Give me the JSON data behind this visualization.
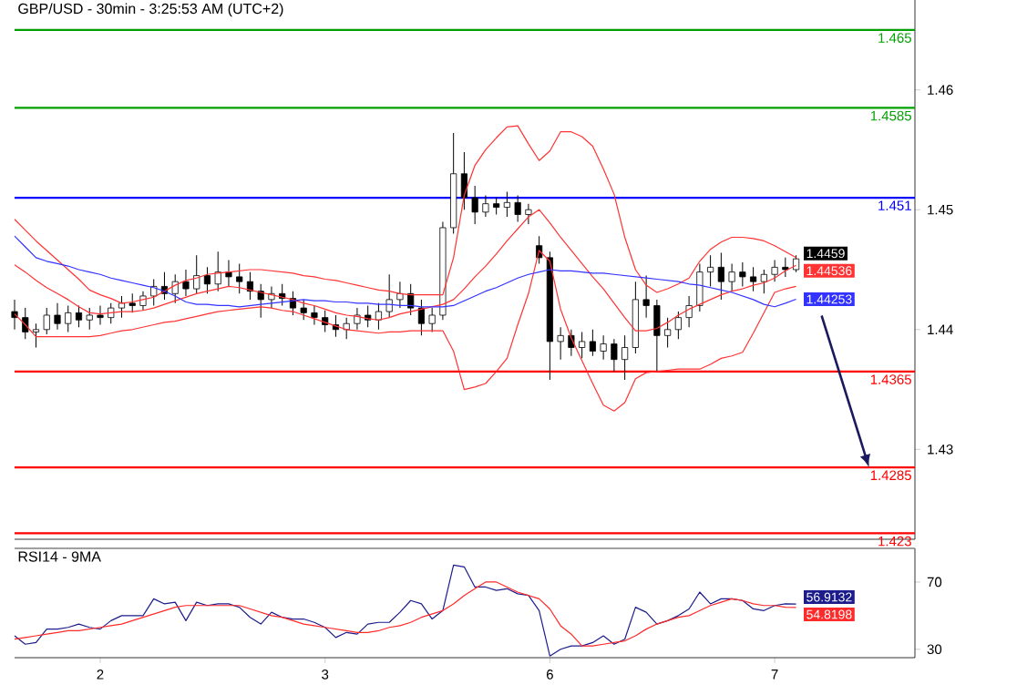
{
  "chart_data": [
    {
      "type": "candlestick",
      "title": "GBP/USD - 30min - 3:25:53 AM (UTC+2)",
      "ylim": [
        1.4225,
        1.4675
      ],
      "yticks": [
        1.43,
        1.44,
        1.45,
        1.46
      ],
      "tick_labels": "y",
      "categories": [
        null,
        null,
        null,
        null,
        null,
        null,
        null,
        null,
        null,
        null,
        null,
        null,
        null,
        null,
        null,
        null,
        null,
        null,
        null,
        null,
        null,
        null,
        null,
        null,
        null,
        null,
        null,
        null,
        null,
        null,
        null,
        null,
        null,
        null,
        null,
        null,
        null,
        null,
        null,
        null,
        null,
        null,
        null,
        null,
        null,
        null,
        null,
        null,
        null,
        null,
        null,
        null,
        null,
        null,
        null,
        null,
        null,
        null,
        null,
        null,
        null,
        null,
        null,
        null,
        null,
        null,
        null,
        null,
        null,
        null,
        null,
        null,
        null,
        null
      ],
      "ref_lines": [
        {
          "axis": "y",
          "value": 1.465,
          "label": "1.465",
          "color": "#00a000"
        },
        {
          "axis": "y",
          "value": 1.4585,
          "label": "1.4585",
          "color": "#00a000"
        },
        {
          "axis": "y",
          "value": 1.451,
          "label": "1.451",
          "color": "#0000ff"
        },
        {
          "axis": "y",
          "value": 1.4365,
          "label": "1.4365",
          "color": "#ff0000"
        },
        {
          "axis": "y",
          "value": 1.4285,
          "label": "1.4285",
          "color": "#ff0000"
        },
        {
          "axis": "y",
          "value": 1.423,
          "label": "1.423",
          "color": "#ff0000"
        }
      ],
      "series": [
        {
          "type": "candlestick",
          "color": "#000000",
          "ohlc": [
            [
              1.4415,
              1.4425,
              1.44,
              1.441
            ],
            [
              1.441,
              1.4418,
              1.4392,
              1.4398
            ],
            [
              1.4398,
              1.4405,
              1.4385,
              1.44
            ],
            [
              1.44,
              1.4418,
              1.4396,
              1.4412
            ],
            [
              1.4412,
              1.4422,
              1.44,
              1.4405
            ],
            [
              1.4405,
              1.442,
              1.4398,
              1.4414
            ],
            [
              1.4414,
              1.442,
              1.4402,
              1.4408
            ],
            [
              1.4408,
              1.4418,
              1.44,
              1.4412
            ],
            [
              1.4412,
              1.442,
              1.4404,
              1.441
            ],
            [
              1.441,
              1.4422,
              1.4405,
              1.4418
            ],
            [
              1.4418,
              1.4428,
              1.441,
              1.4422
            ],
            [
              1.4422,
              1.443,
              1.4414,
              1.442
            ],
            [
              1.442,
              1.4432,
              1.4416,
              1.4428
            ],
            [
              1.4428,
              1.4442,
              1.442,
              1.4436
            ],
            [
              1.4436,
              1.4448,
              1.4425,
              1.443
            ],
            [
              1.443,
              1.4446,
              1.4422,
              1.444
            ],
            [
              1.444,
              1.445,
              1.4428,
              1.4434
            ],
            [
              1.4434,
              1.4462,
              1.443,
              1.4445
            ],
            [
              1.4445,
              1.4452,
              1.443,
              1.4438
            ],
            [
              1.4438,
              1.4465,
              1.4432,
              1.4448
            ],
            [
              1.4448,
              1.4458,
              1.4436,
              1.4444
            ],
            [
              1.4444,
              1.4455,
              1.443,
              1.444
            ],
            [
              1.444,
              1.4448,
              1.4425,
              1.4432
            ],
            [
              1.4432,
              1.4438,
              1.441,
              1.4425
            ],
            [
              1.4425,
              1.4436,
              1.4418,
              1.443
            ],
            [
              1.443,
              1.4438,
              1.442,
              1.4426
            ],
            [
              1.4426,
              1.4432,
              1.4412,
              1.4418
            ],
            [
              1.4418,
              1.4425,
              1.4408,
              1.4414
            ],
            [
              1.4414,
              1.442,
              1.4404,
              1.441
            ],
            [
              1.441,
              1.4416,
              1.4398,
              1.4404
            ],
            [
              1.4404,
              1.4412,
              1.4394,
              1.44
            ],
            [
              1.44,
              1.441,
              1.4392,
              1.4405
            ],
            [
              1.4405,
              1.4418,
              1.44,
              1.4412
            ],
            [
              1.4412,
              1.442,
              1.4402,
              1.4408
            ],
            [
              1.4408,
              1.4422,
              1.44,
              1.4415
            ],
            [
              1.4415,
              1.4446,
              1.441,
              1.4425
            ],
            [
              1.4425,
              1.444,
              1.4418,
              1.443
            ],
            [
              1.443,
              1.4438,
              1.4412,
              1.4418
            ],
            [
              1.4418,
              1.4425,
              1.4395,
              1.4405
            ],
            [
              1.4405,
              1.4418,
              1.4398,
              1.4412
            ],
            [
              1.4412,
              1.449,
              1.4408,
              1.4485
            ],
            [
              1.4485,
              1.4564,
              1.448,
              1.453
            ],
            [
              1.453,
              1.4548,
              1.45,
              1.451
            ],
            [
              1.451,
              1.452,
              1.4488,
              1.4498
            ],
            [
              1.4498,
              1.4512,
              1.4494,
              1.4505
            ],
            [
              1.4505,
              1.451,
              1.4496,
              1.4502
            ],
            [
              1.4502,
              1.4515,
              1.4494,
              1.4506
            ],
            [
              1.4506,
              1.4512,
              1.449,
              1.4496
            ],
            [
              1.4496,
              1.4505,
              1.4488,
              1.45
            ],
            [
              1.447,
              1.4478,
              1.4455,
              1.446
            ],
            [
              1.446,
              1.4465,
              1.4358,
              1.439
            ],
            [
              1.439,
              1.4402,
              1.4375,
              1.4395
            ],
            [
              1.4395,
              1.44,
              1.4378,
              1.4385
            ],
            [
              1.4385,
              1.4398,
              1.4376,
              1.439
            ],
            [
              1.439,
              1.44,
              1.4378,
              1.4382
            ],
            [
              1.4382,
              1.4395,
              1.4375,
              1.4388
            ],
            [
              1.4388,
              1.4392,
              1.4365,
              1.4375
            ],
            [
              1.4375,
              1.4395,
              1.4358,
              1.4385
            ],
            [
              1.4385,
              1.444,
              1.438,
              1.4425
            ],
            [
              1.4425,
              1.4445,
              1.441,
              1.442
            ],
            [
              1.442,
              1.4425,
              1.4365,
              1.4395
            ],
            [
              1.4395,
              1.441,
              1.4385,
              1.44
            ],
            [
              1.44,
              1.4415,
              1.4392,
              1.441
            ],
            [
              1.441,
              1.4428,
              1.4402,
              1.442
            ],
            [
              1.442,
              1.4455,
              1.4415,
              1.4448
            ],
            [
              1.4448,
              1.4462,
              1.4436,
              1.4452
            ],
            [
              1.4452,
              1.4464,
              1.4425,
              1.444
            ],
            [
              1.444,
              1.4455,
              1.4432,
              1.4448
            ],
            [
              1.4448,
              1.4456,
              1.4436,
              1.4444
            ],
            [
              1.4444,
              1.4452,
              1.4432,
              1.444
            ],
            [
              1.444,
              1.445,
              1.443,
              1.4446
            ],
            [
              1.4446,
              1.4458,
              1.444,
              1.4452
            ],
            [
              1.4452,
              1.446,
              1.4444,
              1.445
            ],
            [
              1.445,
              1.4462,
              1.4448,
              1.4459
            ]
          ],
          "value_labels": [
            null,
            null,
            null,
            null,
            null,
            null,
            null,
            null,
            null,
            null,
            null,
            null,
            null,
            null,
            null,
            null,
            null,
            null,
            null,
            null,
            null,
            null,
            null,
            null,
            null,
            null,
            null,
            null,
            null,
            null,
            null,
            null,
            null,
            null,
            null,
            null,
            null,
            null,
            null,
            null,
            null,
            null,
            null,
            null,
            null,
            null,
            null,
            null,
            null,
            null,
            null,
            null,
            null,
            null,
            null,
            null,
            null,
            null,
            null,
            null,
            null,
            null,
            null,
            null,
            null,
            null,
            null,
            null,
            null,
            null,
            null,
            null,
            null,
            "1.4459"
          ]
        },
        {
          "type": "line",
          "color": "#ff3333",
          "values": [
            1.4492,
            1.4483,
            1.4474,
            1.4466,
            1.4458,
            1.445,
            1.4442,
            1.4433,
            1.4429,
            1.4426,
            1.4422,
            1.4423,
            1.4425,
            1.4427,
            1.4432,
            1.4437,
            1.4441,
            1.4443,
            1.4446,
            1.4447,
            1.4448,
            1.4449,
            1.445,
            1.445,
            1.4449,
            1.4448,
            1.4447,
            1.4445,
            1.4444,
            1.4442,
            1.4441,
            1.4439,
            1.4437,
            1.4435,
            1.4433,
            1.4432,
            1.443,
            1.4429,
            1.4429,
            1.4429,
            1.4429,
            1.446,
            1.4512,
            1.4537,
            1.455,
            1.456,
            1.4569,
            1.457,
            1.4555,
            1.4541,
            1.4549,
            1.4565,
            1.4565,
            1.4561,
            1.4553,
            1.4534,
            1.4513,
            1.4477,
            1.445,
            1.4437,
            1.4431,
            1.4434,
            1.4438,
            1.4443,
            1.4457,
            1.4467,
            1.4473,
            1.4477,
            1.4477,
            1.4476,
            1.4474,
            1.447,
            1.4465,
            1.446
          ]
        },
        {
          "type": "line",
          "color": "#ff3333",
          "values": [
            1.4454,
            1.4448,
            1.4441,
            1.4435,
            1.443,
            1.4425,
            1.4419,
            1.4414,
            1.4413,
            1.4414,
            1.4415,
            1.4415,
            1.4416,
            1.4418,
            1.4421,
            1.4424,
            1.4427,
            1.443,
            1.4432,
            1.4434,
            1.4436,
            1.4435,
            1.4433,
            1.4431,
            1.4429,
            1.4427,
            1.4425,
            1.4422,
            1.442,
            1.4417,
            1.4414,
            1.4412,
            1.4411,
            1.4409,
            1.4408,
            1.441,
            1.4413,
            1.4415,
            1.4417,
            1.4419,
            1.4421,
            1.4425,
            1.4434,
            1.4444,
            1.4453,
            1.4463,
            1.4474,
            1.4484,
            1.4494,
            1.45,
            1.4489,
            1.4477,
            1.4466,
            1.4455,
            1.4444,
            1.4434,
            1.4422,
            1.441,
            1.4399,
            1.4399,
            1.4401,
            1.4406,
            1.4412,
            1.4417,
            1.4421,
            1.4425,
            1.4429,
            1.4432,
            1.4434,
            1.4437,
            1.4439,
            1.4443,
            1.4449,
            1.44536
          ],
          "value_labels": [
            null,
            null,
            null,
            null,
            null,
            null,
            null,
            null,
            null,
            null,
            null,
            null,
            null,
            null,
            null,
            null,
            null,
            null,
            null,
            null,
            null,
            null,
            null,
            null,
            null,
            null,
            null,
            null,
            null,
            null,
            null,
            null,
            null,
            null,
            null,
            null,
            null,
            null,
            null,
            null,
            null,
            null,
            null,
            null,
            null,
            null,
            null,
            null,
            null,
            null,
            null,
            null,
            null,
            null,
            null,
            null,
            null,
            null,
            null,
            null,
            null,
            null,
            null,
            null,
            null,
            null,
            null,
            null,
            null,
            null,
            null,
            null,
            null,
            "1.44536"
          ]
        },
        {
          "type": "line",
          "color": "#ff3333",
          "values": [
            1.4413,
            1.4404,
            1.4394,
            1.4394,
            1.4394,
            1.4394,
            1.4394,
            1.4394,
            1.4395,
            1.4397,
            1.4399,
            1.44,
            1.4402,
            1.4404,
            1.4406,
            1.4407,
            1.4409,
            1.4411,
            1.4413,
            1.4415,
            1.4416,
            1.4417,
            1.4418,
            1.4419,
            1.4418,
            1.4416,
            1.4415,
            1.4412,
            1.4409,
            1.4406,
            1.4403,
            1.44,
            1.4399,
            1.4398,
            1.4397,
            1.4398,
            1.4398,
            1.4399,
            1.4399,
            1.4399,
            1.4399,
            1.4382,
            1.435,
            1.4352,
            1.4355,
            1.4365,
            1.4376,
            1.4404,
            1.443,
            1.4466,
            1.4457,
            1.4417,
            1.4393,
            1.4374,
            1.4355,
            1.4337,
            1.4332,
            1.4339,
            1.4359,
            1.4364,
            1.4365,
            1.4366,
            1.4367,
            1.4367,
            1.4367,
            1.4371,
            1.4376,
            1.4378,
            1.4381,
            1.4397,
            1.4414,
            1.4431,
            1.4434,
            1.4436
          ]
        },
        {
          "type": "line",
          "color": "#3333ff",
          "values": [
            1.4478,
            1.4469,
            1.446,
            1.4457,
            1.4455,
            1.4453,
            1.445,
            1.4448,
            1.4446,
            1.4443,
            1.4441,
            1.4439,
            1.4437,
            1.4435,
            1.4432,
            1.4428,
            1.4423,
            1.4421,
            1.4421,
            1.442,
            1.442,
            1.4419,
            1.442,
            1.4421,
            1.4422,
            1.4423,
            1.4424,
            1.4425,
            1.4424,
            1.4424,
            1.4423,
            1.4423,
            1.4422,
            1.4422,
            1.4421,
            1.4421,
            1.442,
            1.442,
            1.4419,
            1.4419,
            1.4419,
            1.442,
            1.4424,
            1.4428,
            1.4432,
            1.4435,
            1.4439,
            1.4443,
            1.4446,
            1.4448,
            1.445,
            1.4449,
            1.4449,
            1.4448,
            1.4447,
            1.4447,
            1.4446,
            1.4445,
            1.4444,
            1.4443,
            1.4442,
            1.4441,
            1.444,
            1.4438,
            1.4437,
            1.4435,
            1.4433,
            1.4431,
            1.4428,
            1.4425,
            1.4421,
            1.4419,
            1.4422,
            1.44253
          ],
          "value_labels": [
            null,
            null,
            null,
            null,
            null,
            null,
            null,
            null,
            null,
            null,
            null,
            null,
            null,
            null,
            null,
            null,
            null,
            null,
            null,
            null,
            null,
            null,
            null,
            null,
            null,
            null,
            null,
            null,
            null,
            null,
            null,
            null,
            null,
            null,
            null,
            null,
            null,
            null,
            null,
            null,
            null,
            null,
            null,
            null,
            null,
            null,
            null,
            null,
            null,
            null,
            null,
            null,
            null,
            null,
            null,
            null,
            null,
            null,
            null,
            null,
            null,
            null,
            null,
            null,
            null,
            null,
            null,
            null,
            null,
            null,
            null,
            null,
            null,
            "1.44253"
          ]
        }
      ]
    },
    {
      "type": "line",
      "title": "RSI14 - 9MA",
      "ylim": [
        25,
        90
      ],
      "yticks": [
        30,
        70
      ],
      "categories": [
        null,
        null,
        null,
        null,
        null,
        null,
        null,
        null,
        "2",
        null,
        null,
        null,
        null,
        null,
        null,
        null,
        null,
        null,
        null,
        null,
        null,
        null,
        null,
        null,
        null,
        null,
        null,
        null,
        null,
        "3",
        null,
        null,
        null,
        null,
        null,
        null,
        null,
        null,
        null,
        null,
        null,
        null,
        null,
        null,
        null,
        null,
        null,
        null,
        null,
        null,
        "6",
        null,
        null,
        null,
        null,
        null,
        null,
        null,
        null,
        null,
        null,
        null,
        null,
        null,
        null,
        null,
        null,
        null,
        null,
        null,
        null,
        "7",
        null,
        null
      ],
      "series": [
        {
          "color": "#1c1c8c",
          "values": [
            38,
            33,
            34,
            42,
            42,
            43,
            45,
            43,
            42,
            47,
            50,
            50,
            50,
            60,
            57,
            58,
            47,
            58,
            56,
            57,
            57,
            55,
            49,
            45,
            52,
            49,
            48,
            48,
            46,
            43,
            37,
            40,
            39,
            45,
            46,
            46,
            52,
            59,
            57,
            48,
            53,
            80,
            79,
            67,
            67,
            65,
            66,
            63,
            62,
            53,
            26,
            30,
            32,
            32,
            34,
            38,
            33,
            36,
            55,
            52,
            45,
            47,
            50,
            54,
            64,
            57,
            60,
            60,
            59,
            54,
            53,
            56,
            57,
            56.9132
          ],
          "value_labels": [
            null,
            null,
            null,
            null,
            null,
            null,
            null,
            null,
            null,
            null,
            null,
            null,
            null,
            null,
            null,
            null,
            null,
            null,
            null,
            null,
            null,
            null,
            null,
            null,
            null,
            null,
            null,
            null,
            null,
            null,
            null,
            null,
            null,
            null,
            null,
            null,
            null,
            null,
            null,
            null,
            null,
            null,
            null,
            null,
            null,
            null,
            null,
            null,
            null,
            null,
            null,
            null,
            null,
            null,
            null,
            null,
            null,
            null,
            null,
            null,
            null,
            null,
            null,
            null,
            null,
            null,
            null,
            null,
            null,
            null,
            null,
            null,
            null,
            "56.9132"
          ]
        },
        {
          "color": "#ff2a2a",
          "values": [
            36,
            37,
            38,
            39,
            40,
            41,
            41,
            42,
            43,
            44,
            45,
            47,
            49,
            51,
            53,
            55,
            56,
            56,
            56,
            56,
            56,
            56,
            54,
            52,
            50,
            49,
            47,
            45,
            44,
            43,
            42,
            41,
            40,
            40,
            41,
            43,
            44,
            46,
            49,
            51,
            53,
            57,
            62,
            66,
            70,
            70,
            67,
            64,
            62,
            60,
            54,
            44,
            39,
            32,
            32,
            33,
            34,
            35,
            38,
            42,
            45,
            47,
            49,
            50,
            53,
            56,
            58,
            60,
            59,
            57,
            56,
            56,
            55,
            54.8198
          ],
          "value_labels": [
            null,
            null,
            null,
            null,
            null,
            null,
            null,
            null,
            null,
            null,
            null,
            null,
            null,
            null,
            null,
            null,
            null,
            null,
            null,
            null,
            null,
            null,
            null,
            null,
            null,
            null,
            null,
            null,
            null,
            null,
            null,
            null,
            null,
            null,
            null,
            null,
            null,
            null,
            null,
            null,
            null,
            null,
            null,
            null,
            null,
            null,
            null,
            null,
            null,
            null,
            null,
            null,
            null,
            null,
            null,
            null,
            null,
            null,
            null,
            null,
            null,
            null,
            null,
            null,
            null,
            null,
            null,
            null,
            null,
            null,
            null,
            null,
            null,
            "54.8198"
          ]
        }
      ]
    }
  ]
}
